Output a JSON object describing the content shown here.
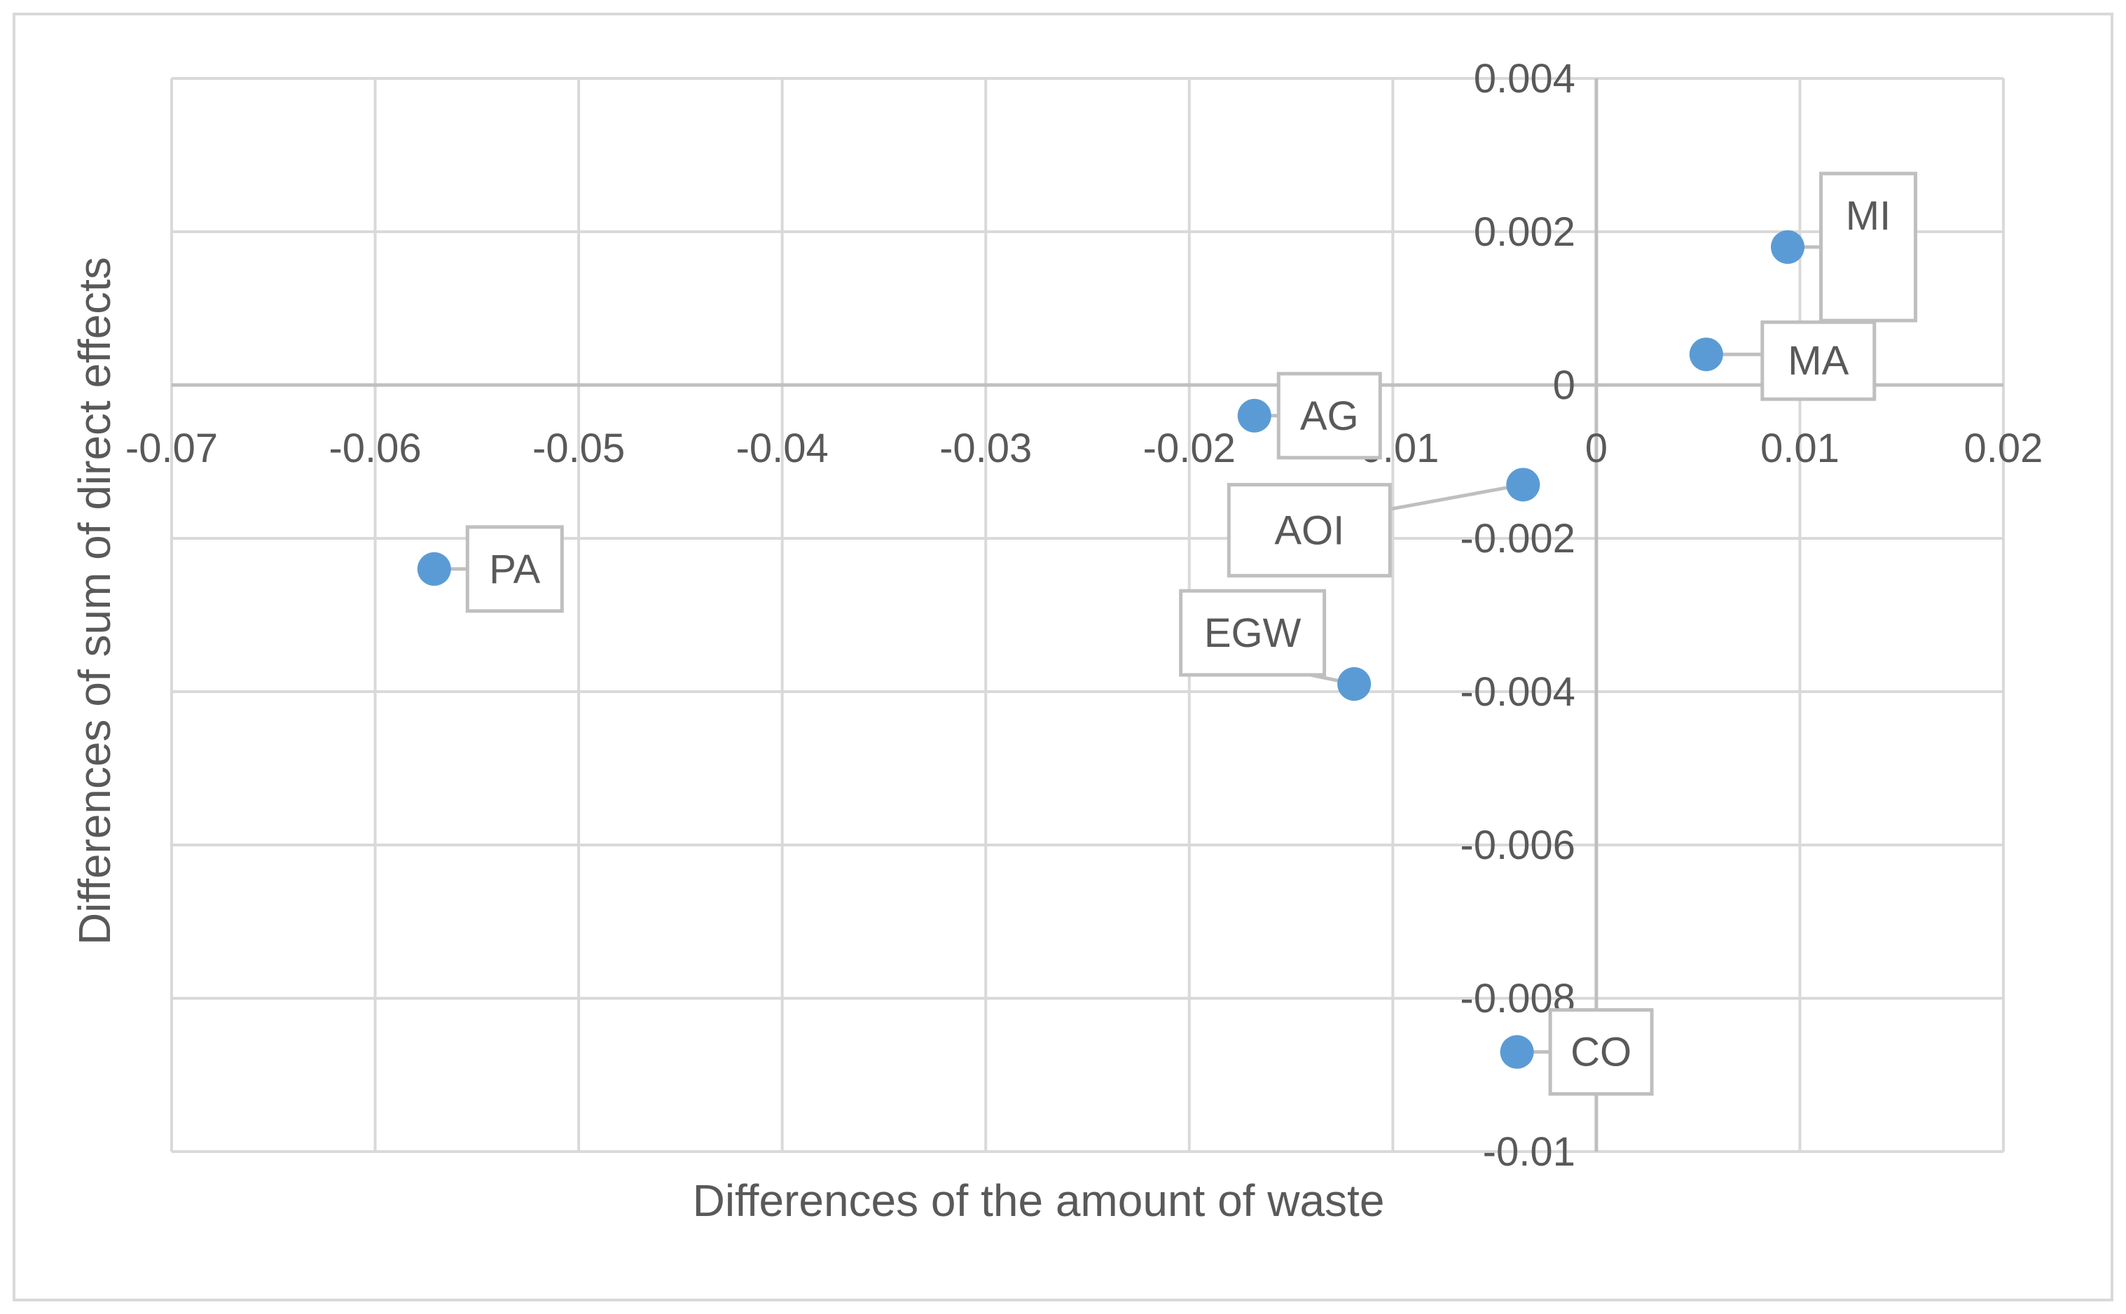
{
  "chart_data": {
    "type": "scatter",
    "title": "",
    "xlabel": "Differences of the amount of waste",
    "ylabel": "Differences of sum of direct effects",
    "xlim": [
      -0.07,
      0.02
    ],
    "ylim": [
      -0.01,
      0.004
    ],
    "x_ticks": [
      -0.07,
      -0.06,
      -0.05,
      -0.04,
      -0.03,
      -0.02,
      -0.01,
      0,
      0.01,
      0.02
    ],
    "x_tick_labels": [
      "-0.07",
      "-0.06",
      "-0.05",
      "-0.04",
      "-0.03",
      "-0.02",
      "-0.01",
      "0",
      "0.01",
      "0.02"
    ],
    "y_ticks": [
      0.004,
      0.002,
      0,
      -0.002,
      -0.004,
      -0.006,
      -0.008,
      -0.01
    ],
    "y_tick_labels": [
      "0.004",
      "0.002",
      "0",
      "-0.002",
      "-0.004",
      "-0.006",
      "-0.008",
      "-0.01"
    ],
    "grid": true,
    "marker_color": "#5b9bd5",
    "points": [
      {
        "label": "MI",
        "x": 0.0094,
        "y": 0.0018
      },
      {
        "label": "MA",
        "x": 0.0054,
        "y": 0.0004
      },
      {
        "label": "AG",
        "x": -0.0168,
        "y": -0.0004
      },
      {
        "label": "AOI",
        "x": -0.0036,
        "y": -0.0013
      },
      {
        "label": "PA",
        "x": -0.0571,
        "y": -0.0024
      },
      {
        "label": "EGW",
        "x": -0.0119,
        "y": -0.0039
      },
      {
        "label": "CO",
        "x": -0.0039,
        "y": -0.0087
      }
    ]
  }
}
